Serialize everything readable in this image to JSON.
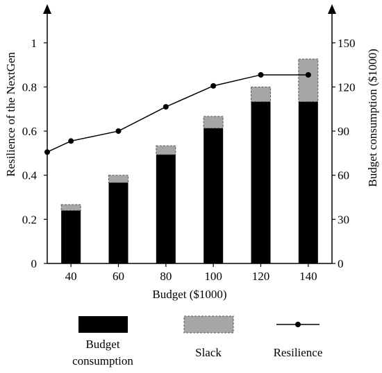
{
  "chart_data": {
    "type": "bar",
    "xlabel": "Budget ($1000)",
    "ylabel_left": "Resilience of the NextGen",
    "ylabel_right": "Budget consumption ($1000)",
    "categories": [
      "40",
      "60",
      "80",
      "100",
      "120",
      "140"
    ],
    "left_axis": {
      "ylim": [
        0,
        1.1
      ],
      "ticks": [
        "0",
        "0.2",
        "0.4",
        "0.6",
        "0.8",
        "1"
      ]
    },
    "right_axis": {
      "ylim": [
        0,
        165
      ],
      "ticks": [
        "0",
        "30",
        "60",
        "90",
        "120",
        "150"
      ]
    },
    "series": [
      {
        "name": "Budget consumption",
        "kind": "bar",
        "axis": "right",
        "color": "#000000",
        "values": [
          36,
          55,
          74,
          92,
          110,
          110
        ]
      },
      {
        "name": "Slack",
        "kind": "bar-stacked",
        "axis": "right",
        "color": "#a6a6a6",
        "values": [
          4,
          5,
          6,
          8,
          10,
          29
        ]
      },
      {
        "name": "Resilience",
        "kind": "line",
        "axis": "left",
        "color": "#000000",
        "x": [
          30,
          40,
          60,
          80,
          100,
          120,
          140
        ],
        "values": [
          0.505,
          0.555,
          0.6,
          0.71,
          0.805,
          0.855,
          0.855
        ]
      }
    ],
    "x_range": [
      30,
      150
    ],
    "legend_position": "bottom",
    "grid": false
  },
  "legend": {
    "budget_line1": "Budget",
    "budget_line2": "consumption",
    "slack": "Slack",
    "resilience": "Resilience"
  }
}
